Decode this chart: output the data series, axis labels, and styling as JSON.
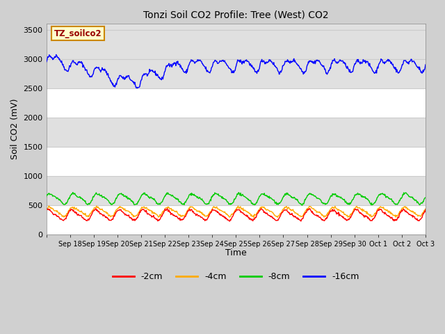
{
  "title": "Tonzi Soil CO2 Profile: Tree (West) CO2",
  "ylabel": "Soil CO2 (mV)",
  "xlabel": "Time",
  "ylim": [
    0,
    3600
  ],
  "yticks": [
    0,
    500,
    1000,
    1500,
    2000,
    2500,
    3000,
    3500
  ],
  "legend_label": "TZ_soilco2",
  "series_labels": [
    "-2cm",
    "-4cm",
    "-8cm",
    "-16cm"
  ],
  "series_colors": [
    "#ff0000",
    "#ffaa00",
    "#00cc00",
    "#0000ff"
  ],
  "fig_bg_color": "#d0d0d0",
  "plot_bg_color": "#ffffff",
  "band_color": "#e0e0e0",
  "band_ranges": [
    [
      500,
      1000
    ],
    [
      1500,
      2000
    ],
    [
      2500,
      3000
    ],
    [
      3000,
      3600
    ]
  ],
  "grid_color": "#cccccc",
  "n_days": 16,
  "x_tick_labels": [
    "Sep 18",
    "Sep 19",
    "Sep 20",
    "Sep 21",
    "Sep 22",
    "Sep 23",
    "Sep 24",
    "Sep 25",
    "Sep 26",
    "Sep 27",
    "Sep 28",
    "Sep 29",
    "Sep 30",
    "Oct 1",
    "Oct 2",
    "Oct 3"
  ],
  "legend_box_facecolor": "#ffffcc",
  "legend_box_edgecolor": "#cc8800",
  "legend_text_color": "#990000"
}
